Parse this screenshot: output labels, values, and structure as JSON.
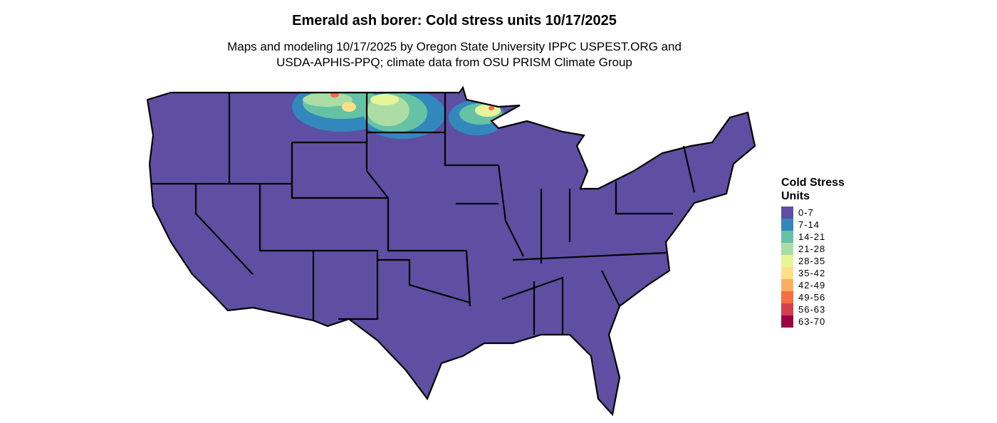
{
  "title": "Emerald ash borer: Cold stress units 10/17/2025",
  "subtitle_line1": "Maps and modeling 10/17/2025 by Oregon State University IPPC USPEST.ORG and",
  "subtitle_line2": "USDA-APHIS-PPQ; climate data from OSU PRISM Climate Group",
  "legend": {
    "title_line1": "Cold Stress",
    "title_line2": "Units",
    "items": [
      {
        "label": "0-7",
        "color": "#5E4FA2"
      },
      {
        "label": "7-14",
        "color": "#3288BD"
      },
      {
        "label": "14-21",
        "color": "#66C2A5"
      },
      {
        "label": "21-28",
        "color": "#ABDDA4"
      },
      {
        "label": "28-35",
        "color": "#E6F598"
      },
      {
        "label": "35-42",
        "color": "#FEE08B"
      },
      {
        "label": "42-49",
        "color": "#FDAE61"
      },
      {
        "label": "49-56",
        "color": "#F46D43"
      },
      {
        "label": "56-63",
        "color": "#D53E4F"
      },
      {
        "label": "63-70",
        "color": "#9E0142"
      }
    ]
  }
}
